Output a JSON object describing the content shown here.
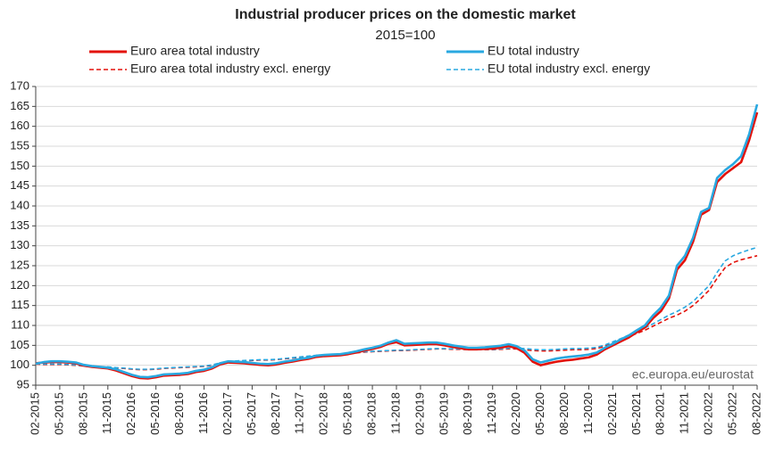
{
  "chart_data": {
    "type": "line",
    "title": "Industrial producer prices on the domestic market",
    "subtitle": "2015=100",
    "source": "ec.europa.eu/eurostat",
    "categories": [
      "02-2015",
      null,
      null,
      "05-2015",
      null,
      null,
      "08-2015",
      null,
      null,
      "11-2015",
      null,
      null,
      "02-2016",
      null,
      null,
      "05-2016",
      null,
      null,
      "08-2016",
      null,
      null,
      "11-2016",
      null,
      null,
      "02-2017",
      null,
      null,
      "05-2017",
      null,
      null,
      "08-2017",
      null,
      null,
      "11-2017",
      null,
      null,
      "02-2018",
      null,
      null,
      "05-2018",
      null,
      null,
      "08-2018",
      null,
      null,
      "11-2018",
      null,
      null,
      "02-2019",
      null,
      null,
      "05-2019",
      null,
      null,
      "08-2019",
      null,
      null,
      "11-2019",
      null,
      null,
      "02-2020",
      null,
      null,
      "05-2020",
      null,
      null,
      "08-2020",
      null,
      null,
      "11-2020",
      null,
      null,
      "02-2021",
      null,
      null,
      "05-2021",
      null,
      null,
      "08-2021",
      null,
      null,
      "11-2021",
      null,
      null,
      "02-2022",
      null,
      null,
      "05-2022",
      null,
      null,
      "08-2022"
    ],
    "ylim": [
      95,
      170
    ],
    "yticks": [
      95,
      100,
      105,
      110,
      115,
      120,
      125,
      130,
      135,
      140,
      145,
      150,
      155,
      160,
      165,
      170
    ],
    "grid": true,
    "series": [
      {
        "name": "Euro area total industry",
        "color": "#e3120b",
        "dashed": false,
        "values": [
          100.5,
          100.7,
          100.8,
          100.8,
          100.7,
          100.5,
          99.9,
          99.6,
          99.4,
          99.2,
          98.7,
          98.0,
          97.3,
          96.8,
          96.7,
          97.0,
          97.4,
          97.5,
          97.6,
          97.8,
          98.3,
          98.6,
          99.2,
          100.2,
          100.7,
          100.6,
          100.5,
          100.3,
          100.1,
          100.0,
          100.2,
          100.6,
          100.9,
          101.3,
          101.6,
          102.1,
          102.3,
          102.4,
          102.5,
          102.8,
          103.2,
          103.7,
          104.1,
          104.6,
          105.4,
          105.8,
          105.0,
          105.1,
          105.2,
          105.3,
          105.3,
          105.0,
          104.6,
          104.3,
          104.0,
          104.0,
          104.1,
          104.2,
          104.4,
          104.8,
          104.3,
          103.1,
          100.9,
          100.0,
          100.5,
          100.9,
          101.2,
          101.4,
          101.7,
          102.0,
          102.7,
          104.0,
          105.0,
          106.0,
          107.0,
          108.3,
          109.5,
          111.8,
          113.6,
          116.8,
          124.0,
          126.4,
          131.0,
          137.8,
          139.0,
          146.0,
          148.0,
          149.5,
          151.0,
          156.5,
          163.5
        ]
      },
      {
        "name": "EU total industry",
        "color": "#29a8e0",
        "dashed": false,
        "values": [
          100.4,
          100.8,
          101.0,
          101.0,
          100.9,
          100.7,
          100.1,
          99.8,
          99.6,
          99.4,
          99.0,
          98.3,
          97.6,
          97.1,
          97.0,
          97.3,
          97.7,
          97.8,
          97.9,
          98.1,
          98.6,
          98.9,
          99.5,
          100.5,
          101.0,
          100.9,
          100.8,
          100.6,
          100.4,
          100.3,
          100.5,
          100.9,
          101.2,
          101.6,
          101.9,
          102.4,
          102.6,
          102.7,
          102.8,
          103.1,
          103.5,
          104.0,
          104.4,
          104.9,
          105.7,
          106.3,
          105.4,
          105.5,
          105.6,
          105.7,
          105.7,
          105.4,
          105.0,
          104.7,
          104.4,
          104.4,
          104.5,
          104.7,
          104.9,
          105.3,
          104.8,
          103.7,
          101.5,
          100.7,
          101.2,
          101.7,
          102.0,
          102.2,
          102.4,
          102.7,
          103.2,
          104.4,
          105.4,
          106.5,
          107.5,
          108.8,
          110.0,
          112.5,
          114.5,
          117.5,
          125.0,
          127.5,
          132.0,
          138.5,
          139.5,
          147.0,
          149.0,
          150.5,
          152.5,
          158.0,
          165.5
        ]
      },
      {
        "name": "Euro area total industry excl. energy",
        "color": "#e3120b",
        "dashed": true,
        "values": [
          100.3,
          100.2,
          100.2,
          100.2,
          100.1,
          100.0,
          99.8,
          99.6,
          99.5,
          99.5,
          99.3,
          99.2,
          99.0,
          98.9,
          98.9,
          99.0,
          99.2,
          99.3,
          99.4,
          99.5,
          99.6,
          99.7,
          100.0,
          100.5,
          100.8,
          101.0,
          101.1,
          101.2,
          101.3,
          101.3,
          101.4,
          101.6,
          101.8,
          102.0,
          102.2,
          102.4,
          102.5,
          102.6,
          102.7,
          102.9,
          103.1,
          103.3,
          103.4,
          103.5,
          103.6,
          103.7,
          103.7,
          103.8,
          103.9,
          104.0,
          104.1,
          104.1,
          104.0,
          104.0,
          103.9,
          103.9,
          103.9,
          103.9,
          104.0,
          104.1,
          104.1,
          103.9,
          103.7,
          103.6,
          103.6,
          103.7,
          103.8,
          103.9,
          103.9,
          104.0,
          104.2,
          104.8,
          105.5,
          106.3,
          107.2,
          108.0,
          108.8,
          109.8,
          110.8,
          111.8,
          112.6,
          113.6,
          115.0,
          116.8,
          118.8,
          121.8,
          124.5,
          125.8,
          126.5,
          127.0,
          127.5
        ]
      },
      {
        "name": "EU total industry excl. energy",
        "color": "#29a8e0",
        "dashed": true,
        "values": [
          100.4,
          100.3,
          100.3,
          100.3,
          100.2,
          100.1,
          99.9,
          99.7,
          99.6,
          99.6,
          99.4,
          99.3,
          99.1,
          99.0,
          99.0,
          99.1,
          99.3,
          99.4,
          99.5,
          99.6,
          99.7,
          99.8,
          100.1,
          100.6,
          100.9,
          101.1,
          101.2,
          101.3,
          101.4,
          101.4,
          101.5,
          101.7,
          101.9,
          102.1,
          102.3,
          102.5,
          102.6,
          102.7,
          102.8,
          103.0,
          103.2,
          103.4,
          103.5,
          103.6,
          103.7,
          103.8,
          103.8,
          103.9,
          104.0,
          104.1,
          104.2,
          104.2,
          104.1,
          104.1,
          104.0,
          104.0,
          104.0,
          104.0,
          104.1,
          104.3,
          104.3,
          104.2,
          104.0,
          103.9,
          103.9,
          104.0,
          104.1,
          104.2,
          104.2,
          104.3,
          104.5,
          105.1,
          105.9,
          106.7,
          107.6,
          108.5,
          109.4,
          110.4,
          111.5,
          112.6,
          113.5,
          114.6,
          116.0,
          118.0,
          120.0,
          123.3,
          126.2,
          127.5,
          128.3,
          129.0,
          129.6
        ]
      }
    ]
  }
}
